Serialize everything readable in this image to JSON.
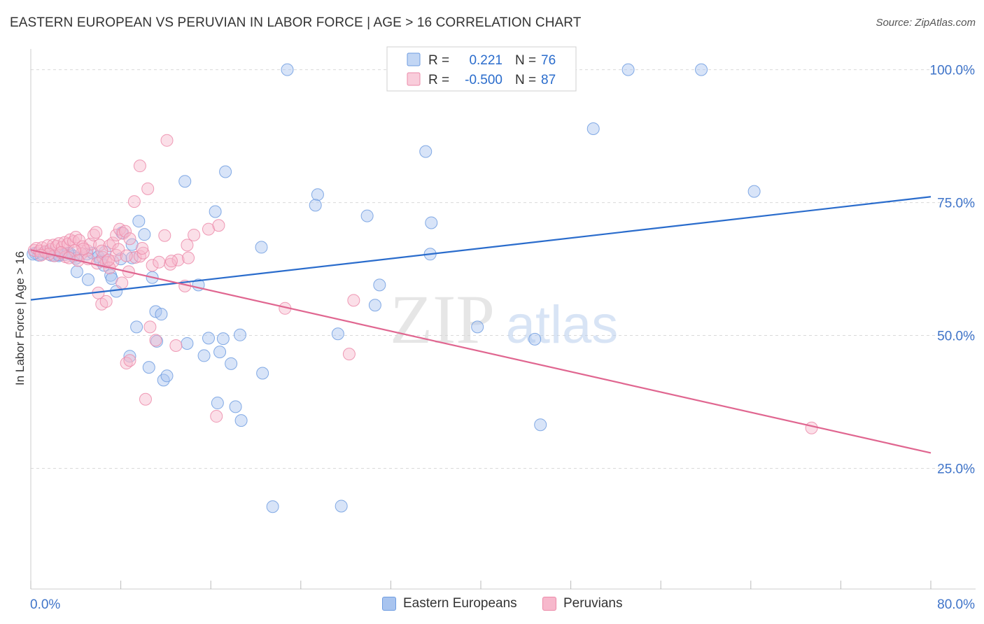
{
  "title": "EASTERN EUROPEAN VS PERUVIAN IN LABOR FORCE | AGE > 16 CORRELATION CHART",
  "source": "Source: ZipAtlas.com",
  "watermark": {
    "zip": "ZIP",
    "atlas": "atlas"
  },
  "legend_top": [
    {
      "r_label": "R =",
      "r_value": "0.221",
      "n_label": "N =",
      "n_value": "76"
    },
    {
      "r_label": "R =",
      "r_value": "-0.500",
      "n_label": "N =",
      "n_value": "87"
    }
  ],
  "colors": {
    "blue_fill": "#a8c4ef",
    "blue_stroke": "#6e9ce0",
    "blue_line": "#2a6ccc",
    "pink_fill": "#f7b8cc",
    "pink_stroke": "#ec8aa9",
    "pink_line": "#e06690",
    "axis_text": "#3f74c9"
  },
  "chart_data": {
    "type": "scatter",
    "title": "EASTERN EUROPEAN VS PERUVIAN IN LABOR FORCE | AGE > 16 CORRELATION CHART",
    "xlabel": "",
    "ylabel": "In Labor Force | Age > 16",
    "xlim": [
      0,
      80
    ],
    "ylim": [
      2.3,
      103.9
    ],
    "x_tick_labels": [
      "0.0%",
      "80.0%"
    ],
    "y_ticks": [
      25,
      50,
      75,
      100
    ],
    "y_tick_labels": [
      "25.0%",
      "50.0%",
      "75.0%",
      "100.0%"
    ],
    "grid": "horizontal dashed",
    "legend_position": "top-center",
    "series": [
      {
        "name": "Eastern Europeans",
        "color": "#a8c4ef",
        "trend": {
          "x": [
            0,
            80
          ],
          "y": [
            56.7,
            76.1
          ]
        },
        "points": [
          [
            0.4,
            65.5
          ],
          [
            0.7,
            65.1
          ],
          [
            1.0,
            65.3
          ],
          [
            1.3,
            65.6
          ],
          [
            1.8,
            65.1
          ],
          [
            2.1,
            65.0
          ],
          [
            2.5,
            65.0
          ],
          [
            3.0,
            65.2
          ],
          [
            3.5,
            65.4
          ],
          [
            3.8,
            64.9
          ],
          [
            4.0,
            64.5
          ],
          [
            5.0,
            65.3
          ],
          [
            5.5,
            65.5
          ],
          [
            6.0,
            64.8
          ],
          [
            6.2,
            64.0
          ],
          [
            6.6,
            65.7
          ],
          [
            4.1,
            62.0
          ],
          [
            5.1,
            60.5
          ],
          [
            6.5,
            63.2
          ],
          [
            7.1,
            61.3
          ],
          [
            7.2,
            60.7
          ],
          [
            7.6,
            58.3
          ],
          [
            8.0,
            64.4
          ],
          [
            8.1,
            69.3
          ],
          [
            9.0,
            67.1
          ],
          [
            9.6,
            71.5
          ],
          [
            9.0,
            64.6
          ],
          [
            10.1,
            69.0
          ],
          [
            10.8,
            60.9
          ],
          [
            9.4,
            51.6
          ],
          [
            8.8,
            46.1
          ],
          [
            10.5,
            44.0
          ],
          [
            11.1,
            54.5
          ],
          [
            11.6,
            54.0
          ],
          [
            11.2,
            48.9
          ],
          [
            11.8,
            41.6
          ],
          [
            12.1,
            42.4
          ],
          [
            13.9,
            48.5
          ],
          [
            15.4,
            46.2
          ],
          [
            15.8,
            49.5
          ],
          [
            16.8,
            46.9
          ],
          [
            17.1,
            49.4
          ],
          [
            17.8,
            44.7
          ],
          [
            18.6,
            50.1
          ],
          [
            20.6,
            42.9
          ],
          [
            16.6,
            37.3
          ],
          [
            18.2,
            36.6
          ],
          [
            18.7,
            34.0
          ],
          [
            21.5,
            17.8
          ],
          [
            27.6,
            17.9
          ],
          [
            13.7,
            79.0
          ],
          [
            17.3,
            80.8
          ],
          [
            16.4,
            73.3
          ],
          [
            20.5,
            66.6
          ],
          [
            25.5,
            76.5
          ],
          [
            25.3,
            74.5
          ],
          [
            29.9,
            72.5
          ],
          [
            31.0,
            59.5
          ],
          [
            30.6,
            55.7
          ],
          [
            27.3,
            50.3
          ],
          [
            35.6,
            71.2
          ],
          [
            35.5,
            65.3
          ],
          [
            35.1,
            84.6
          ],
          [
            22.8,
            100.0
          ],
          [
            53.1,
            100.0
          ],
          [
            59.6,
            100.0
          ],
          [
            50.0,
            88.9
          ],
          [
            64.3,
            77.1
          ],
          [
            45.3,
            33.2
          ],
          [
            39.7,
            51.6
          ],
          [
            44.8,
            49.3
          ],
          [
            14.9,
            59.5
          ],
          [
            2.5,
            65.2
          ],
          [
            1.5,
            65.8
          ],
          [
            3.3,
            65.5
          ],
          [
            0.2,
            65.3
          ]
        ]
      },
      {
        "name": "Peruvians",
        "color": "#f7b8cc",
        "trend": {
          "x": [
            0,
            80
          ],
          "y": [
            66.1,
            27.9
          ]
        },
        "points": [
          [
            0.3,
            66.0
          ],
          [
            0.5,
            66.4
          ],
          [
            0.8,
            65.9
          ],
          [
            1.0,
            66.5
          ],
          [
            1.3,
            65.8
          ],
          [
            1.5,
            66.9
          ],
          [
            1.8,
            66.2
          ],
          [
            2.0,
            67.0
          ],
          [
            2.3,
            66.8
          ],
          [
            2.5,
            67.3
          ],
          [
            2.8,
            66.6
          ],
          [
            3.0,
            67.5
          ],
          [
            3.3,
            67.2
          ],
          [
            3.5,
            68.0
          ],
          [
            3.8,
            67.7
          ],
          [
            4.0,
            68.5
          ],
          [
            4.3,
            67.9
          ],
          [
            4.6,
            66.7
          ],
          [
            5.0,
            66.0
          ],
          [
            5.3,
            67.2
          ],
          [
            5.6,
            68.9
          ],
          [
            5.8,
            69.4
          ],
          [
            6.1,
            67.0
          ],
          [
            6.4,
            64.7
          ],
          [
            6.7,
            63.8
          ],
          [
            7.0,
            66.9
          ],
          [
            7.3,
            63.9
          ],
          [
            7.6,
            65.1
          ],
          [
            7.3,
            67.4
          ],
          [
            7.6,
            68.9
          ],
          [
            7.9,
            70.0
          ],
          [
            8.2,
            69.2
          ],
          [
            8.4,
            69.6
          ],
          [
            8.8,
            68.2
          ],
          [
            9.3,
            64.7
          ],
          [
            9.7,
            64.9
          ],
          [
            9.2,
            75.2
          ],
          [
            9.7,
            81.9
          ],
          [
            10.4,
            77.6
          ],
          [
            12.1,
            86.7
          ],
          [
            10.8,
            63.2
          ],
          [
            11.4,
            63.8
          ],
          [
            11.9,
            68.8
          ],
          [
            12.4,
            63.4
          ],
          [
            13.1,
            64.2
          ],
          [
            14.0,
            64.6
          ],
          [
            13.9,
            67.0
          ],
          [
            14.5,
            68.9
          ],
          [
            15.8,
            70.0
          ],
          [
            16.7,
            70.7
          ],
          [
            6.0,
            58.0
          ],
          [
            6.3,
            55.9
          ],
          [
            6.7,
            56.4
          ],
          [
            8.1,
            59.9
          ],
          [
            10.6,
            51.6
          ],
          [
            11.1,
            49.1
          ],
          [
            12.9,
            48.1
          ],
          [
            13.7,
            59.3
          ],
          [
            8.5,
            44.8
          ],
          [
            8.8,
            45.3
          ],
          [
            10.2,
            38.0
          ],
          [
            16.5,
            34.8
          ],
          [
            22.6,
            55.1
          ],
          [
            28.7,
            56.6
          ],
          [
            28.3,
            46.5
          ],
          [
            69.4,
            32.6
          ],
          [
            2.1,
            65.0
          ],
          [
            3.1,
            64.8
          ],
          [
            4.5,
            65.4
          ],
          [
            5.1,
            64.4
          ],
          [
            5.9,
            63.6
          ],
          [
            7.0,
            62.7
          ],
          [
            8.7,
            62.0
          ],
          [
            10.0,
            65.5
          ],
          [
            6.3,
            65.9
          ],
          [
            4.7,
            66.3
          ],
          [
            3.9,
            66.0
          ],
          [
            2.7,
            65.6
          ],
          [
            1.6,
            65.3
          ],
          [
            0.9,
            65.1
          ],
          [
            6.9,
            64.2
          ],
          [
            7.8,
            66.2
          ],
          [
            8.5,
            65.0
          ],
          [
            9.9,
            66.4
          ],
          [
            12.5,
            64.0
          ],
          [
            4.2,
            64.1
          ],
          [
            3.4,
            64.6
          ]
        ]
      }
    ]
  }
}
